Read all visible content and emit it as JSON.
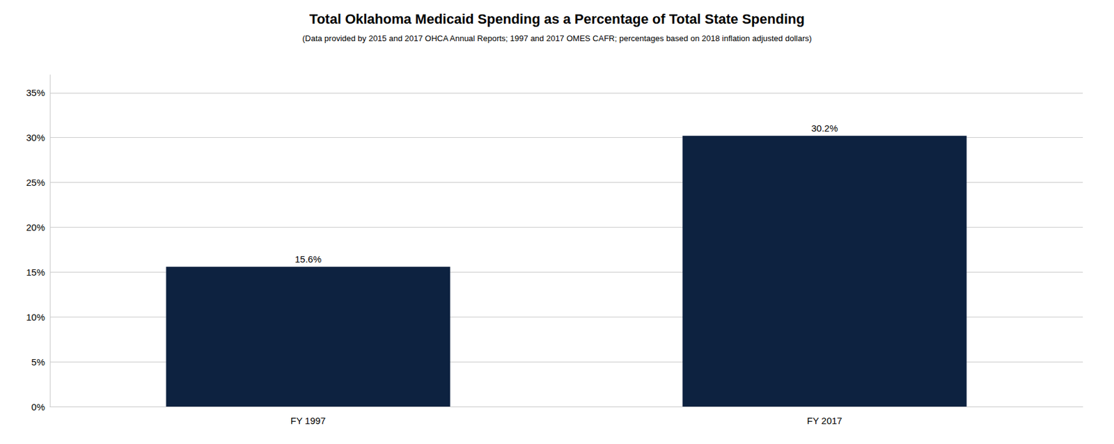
{
  "chart_data": {
    "type": "bar",
    "title": "Total Oklahoma Medicaid Spending as a Percentage of Total State Spending",
    "subtitle": "(Data provided by 2015 and 2017 OHCA Annual Reports; 1997 and 2017 OMES CAFR; percentages based on 2018 inflation adjusted dollars)",
    "categories": [
      "FY 1997",
      "FY 2017"
    ],
    "values": [
      15.6,
      30.2
    ],
    "value_labels": [
      "15.6%",
      "30.2%"
    ],
    "data_labels": true,
    "color": "#0d2240",
    "ylim": [
      0,
      37
    ],
    "yticks": [
      {
        "value": 0,
        "label": "0%"
      },
      {
        "value": 5,
        "label": "5%"
      },
      {
        "value": 10,
        "label": "10%"
      },
      {
        "value": 15,
        "label": "15%"
      },
      {
        "value": 20,
        "label": "20%"
      },
      {
        "value": 25,
        "label": "25%"
      },
      {
        "value": 30,
        "label": "30%"
      },
      {
        "value": 35,
        "label": "35%"
      }
    ],
    "grid": true
  }
}
